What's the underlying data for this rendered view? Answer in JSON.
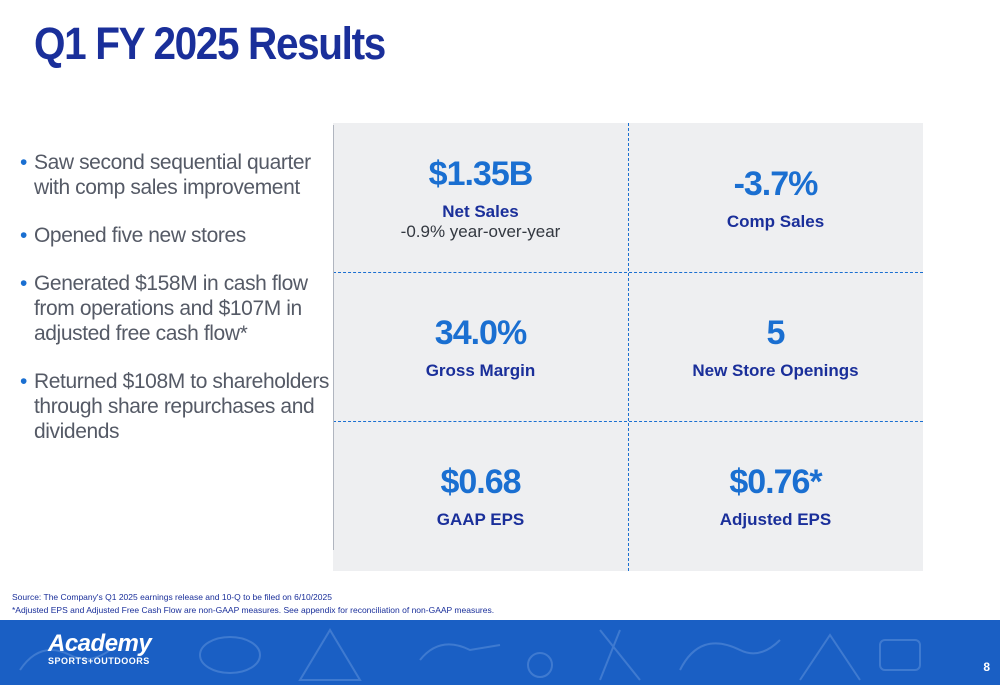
{
  "title": "Q1 FY 2025 Results",
  "bullets": [
    "Saw second sequential quarter with comp sales improvement",
    "Opened five new stores",
    "Generated $158M in cash flow from operations and $107M in adjusted free cash flow*",
    "Returned $108M to shareholders through share repurchases and dividends"
  ],
  "bullet_glyph": "•",
  "metrics": [
    {
      "value": "$1.35B",
      "label": "Net Sales",
      "sub": "-0.9% year-over-year"
    },
    {
      "value": "-3.7%",
      "label": "Comp Sales",
      "sub": ""
    },
    {
      "value": "34.0%",
      "label": "Gross Margin",
      "sub": ""
    },
    {
      "value": "5",
      "label": "New Store Openings",
      "sub": ""
    },
    {
      "value": "$0.68",
      "label": "GAAP EPS",
      "sub": ""
    },
    {
      "value": "$0.76*",
      "label": "Adjusted EPS",
      "sub": ""
    }
  ],
  "footnotes": {
    "source": "Source: The Company's Q1 2025 earnings release and 10-Q to be filed on 6/10/2025",
    "note": "*Adjusted EPS and Adjusted Free Cash Flow are non-GAAP measures. See appendix for reconciliation of non-GAAP measures."
  },
  "footer": {
    "logo_main": "Academy",
    "logo_sub": "SPORTS+OUTDOORS",
    "page_number": "8"
  },
  "colors": {
    "title": "#1a2f9a",
    "accent": "#1a6fd1",
    "footer_band": "#1a5fc4",
    "panel": "#eeeff1"
  }
}
